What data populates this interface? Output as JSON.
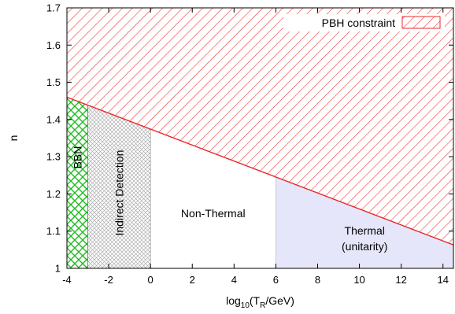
{
  "chart_data": {
    "type": "area",
    "xlabel": "log10(TR/GeV)",
    "xlabel_parts": {
      "base": "log",
      "base_sub": "10",
      "open": "(T",
      "t_sub": "R",
      "close": "/GeV)"
    },
    "ylabel": "n",
    "xlim": [
      -4,
      14.5
    ],
    "ylim": [
      1.0,
      1.7
    ],
    "xticks": [
      -4,
      -2,
      0,
      2,
      4,
      6,
      8,
      10,
      12,
      14
    ],
    "yticks": [
      1,
      1.1,
      1.2,
      1.3,
      1.4,
      1.5,
      1.6,
      1.7
    ],
    "grid": false,
    "legend": {
      "position": "top-right",
      "label": "PBH constraint"
    },
    "constraint_boundary": {
      "x": [
        -4,
        14.5
      ],
      "y": [
        1.46,
        1.063
      ]
    },
    "regions": [
      {
        "label": "BBN",
        "x_range": [
          -4,
          -3
        ],
        "pattern": "crosshatch",
        "color": "#22bb22",
        "label_orientation": "vertical"
      },
      {
        "label": "Indirect Detection",
        "x_range": [
          -3,
          0
        ],
        "pattern": "crosshatch",
        "color": "#aaaaaa",
        "label_orientation": "vertical"
      },
      {
        "label": "Non-Thermal",
        "x_range": [
          0,
          6
        ],
        "pattern": "none",
        "color": "#ffffff",
        "label_orientation": "horizontal"
      },
      {
        "label": "Thermal",
        "sublabel": "(unitarity)",
        "x_range": [
          6,
          14.5
        ],
        "pattern": "fill",
        "color": "#e6e6fa",
        "label_orientation": "horizontal"
      }
    ],
    "colors": {
      "constraint": "#e8292c",
      "bbn": "#22bb22",
      "indirect": "#aaaaaa",
      "thermal": "#e6e6fa",
      "axis": "#000000"
    }
  }
}
